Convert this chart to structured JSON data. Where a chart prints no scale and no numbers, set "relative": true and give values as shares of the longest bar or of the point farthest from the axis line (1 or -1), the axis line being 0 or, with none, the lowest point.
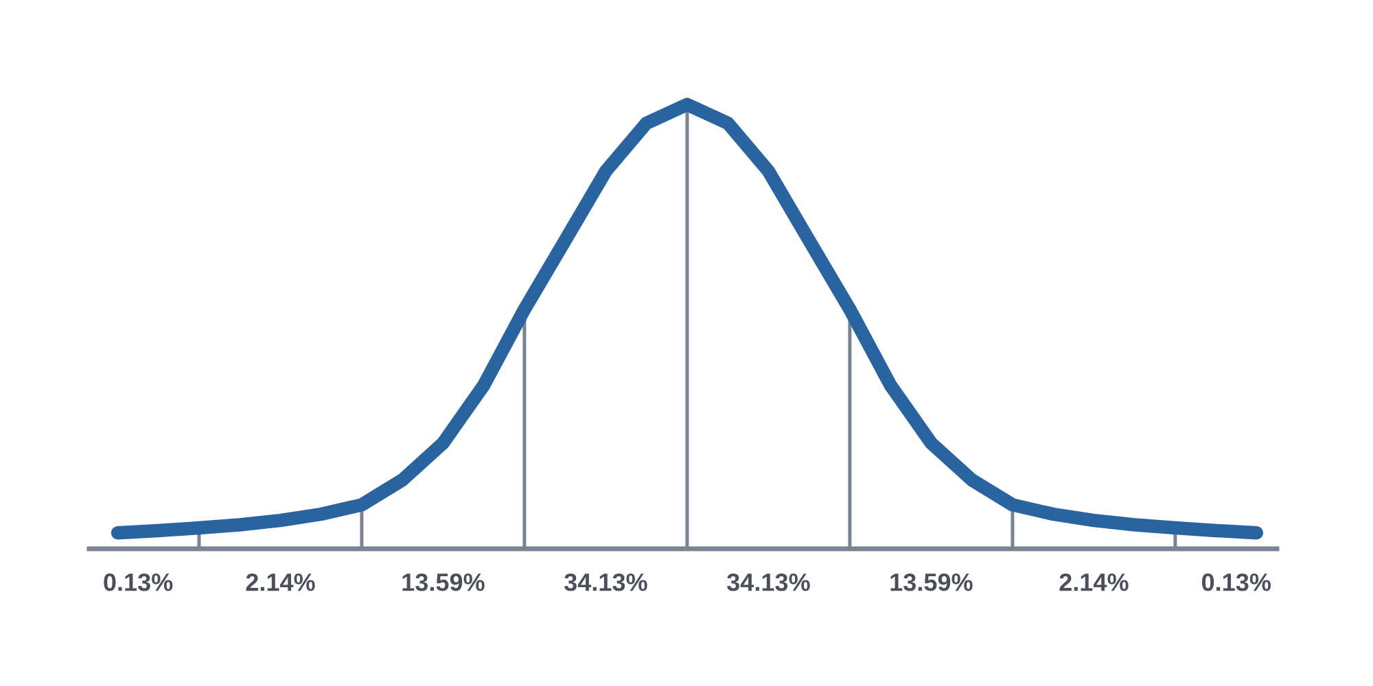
{
  "chart_data": {
    "type": "line",
    "relative": true,
    "tick_labels": false,
    "categories": [
      null,
      null,
      null,
      null,
      null,
      null,
      null,
      null,
      null,
      null,
      null,
      null,
      null,
      null,
      null,
      null,
      null,
      null,
      null,
      null,
      null,
      null,
      null,
      null,
      null,
      null,
      null,
      null,
      null
    ],
    "series": [
      {
        "color": "#2a64a0",
        "values": [
          0.036,
          0.041,
          0.047,
          0.054,
          0.064,
          0.078,
          0.099,
          0.155,
          0.238,
          0.368,
          0.539,
          0.694,
          0.85,
          0.958,
          1,
          0.958,
          0.85,
          0.694,
          0.539,
          0.368,
          0.238,
          0.155,
          0.099,
          0.078,
          0.064,
          0.054,
          0.047,
          0.041,
          0.036
        ]
      }
    ],
    "annotations": [
      "0.13%",
      "2.14%",
      "13.59%",
      "34.13%",
      "34.13%",
      "13.59%",
      "2.14%",
      "0.13%"
    ]
  }
}
